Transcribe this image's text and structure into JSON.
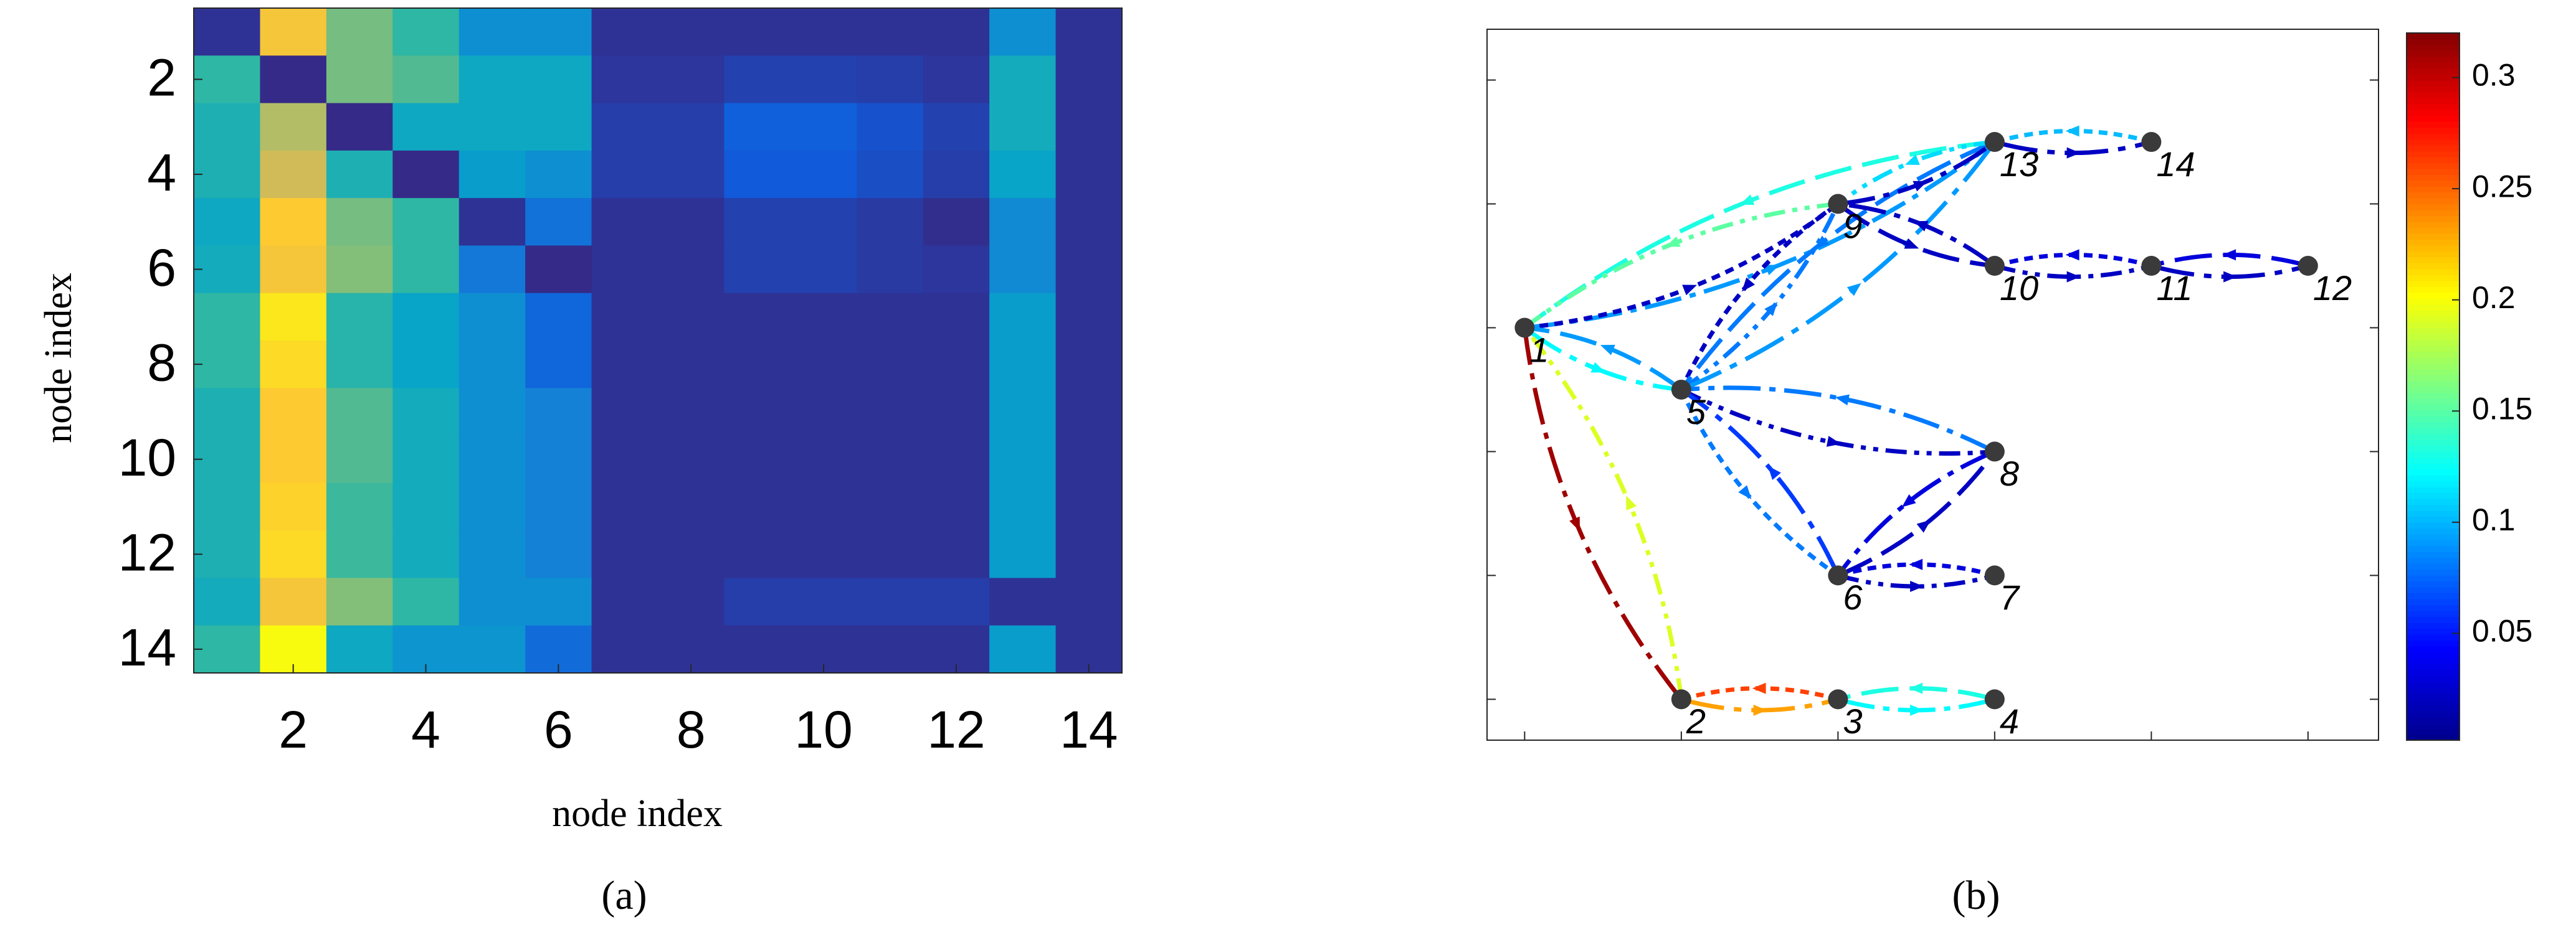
{
  "chart_data": [
    {
      "type": "heatmap",
      "caption": "(a)",
      "xlabel": "node index",
      "ylabel": "node index",
      "x": [
        1,
        2,
        3,
        4,
        5,
        6,
        7,
        8,
        9,
        10,
        11,
        12,
        13,
        14
      ],
      "y": [
        1,
        2,
        3,
        4,
        5,
        6,
        7,
        8,
        9,
        10,
        11,
        12,
        13,
        14
      ],
      "xlim": [
        0.5,
        14.5
      ],
      "ylim": [
        14.5,
        0.5
      ],
      "xticks": [
        2,
        4,
        6,
        8,
        10,
        12,
        14
      ],
      "yticks": [
        2,
        4,
        6,
        8,
        10,
        12,
        14
      ],
      "colormap": "parula",
      "clim": [
        0,
        1
      ],
      "values": [
        [
          0.02,
          0.85,
          0.6,
          0.5,
          0.3,
          0.3,
          0.02,
          0.02,
          0.02,
          0.02,
          0.02,
          0.02,
          0.3,
          0.02
        ],
        [
          0.5,
          0,
          0.6,
          0.55,
          0.4,
          0.4,
          0.03,
          0.03,
          0.06,
          0.06,
          0.05,
          0.03,
          0.42,
          0.02
        ],
        [
          0.45,
          0.7,
          0,
          0.4,
          0.4,
          0.4,
          0.05,
          0.05,
          0.14,
          0.14,
          0.1,
          0.06,
          0.42,
          0.02
        ],
        [
          0.45,
          0.75,
          0.45,
          0,
          0.35,
          0.3,
          0.05,
          0.05,
          0.12,
          0.12,
          0.09,
          0.05,
          0.38,
          0.02
        ],
        [
          0.4,
          0.88,
          0.6,
          0.5,
          0.02,
          0.2,
          0.02,
          0.02,
          0.06,
          0.06,
          0.04,
          0.01,
          0.28,
          0.02
        ],
        [
          0.42,
          0.85,
          0.62,
          0.5,
          0.22,
          0,
          0.02,
          0.02,
          0.06,
          0.06,
          0.04,
          0.03,
          0.28,
          0.02
        ],
        [
          0.5,
          0.95,
          0.48,
          0.38,
          0.3,
          0.16,
          0.02,
          0.02,
          0.02,
          0.02,
          0.02,
          0.02,
          0.35,
          0.02
        ],
        [
          0.5,
          0.92,
          0.48,
          0.38,
          0.3,
          0.16,
          0.02,
          0.02,
          0.02,
          0.02,
          0.02,
          0.02,
          0.35,
          0.02
        ],
        [
          0.45,
          0.88,
          0.55,
          0.42,
          0.3,
          0.25,
          0.02,
          0.02,
          0.02,
          0.02,
          0.02,
          0.02,
          0.35,
          0.02
        ],
        [
          0.45,
          0.88,
          0.55,
          0.42,
          0.3,
          0.25,
          0.02,
          0.02,
          0.02,
          0.02,
          0.02,
          0.02,
          0.35,
          0.02
        ],
        [
          0.45,
          0.9,
          0.52,
          0.42,
          0.3,
          0.25,
          0.02,
          0.02,
          0.02,
          0.02,
          0.02,
          0.02,
          0.35,
          0.02
        ],
        [
          0.45,
          0.92,
          0.52,
          0.42,
          0.3,
          0.25,
          0.02,
          0.02,
          0.02,
          0.02,
          0.02,
          0.02,
          0.35,
          0.02
        ],
        [
          0.42,
          0.85,
          0.62,
          0.5,
          0.3,
          0.3,
          0.02,
          0.02,
          0.05,
          0.05,
          0.05,
          0.05,
          0.02,
          0.02
        ],
        [
          0.5,
          1.0,
          0.4,
          0.32,
          0.32,
          0.18,
          0.02,
          0.02,
          0.02,
          0.02,
          0.02,
          0.02,
          0.35,
          0.02
        ]
      ]
    },
    {
      "type": "network",
      "caption": "(b)",
      "xlim": [
        -0.24,
        5.45
      ],
      "ylim": [
        -0.33,
        5.41
      ],
      "xticks": [
        0,
        1,
        2,
        3,
        4,
        5
      ],
      "yticks": [
        0,
        1,
        2,
        3,
        4,
        5
      ],
      "colormap": "jet",
      "clim": [
        0.002,
        0.32
      ],
      "colorbar_ticks": [
        0.05,
        0.1,
        0.15,
        0.2,
        0.25,
        0.3
      ],
      "nodes": [
        {
          "label": "1",
          "x": 0,
          "y": 3
        },
        {
          "label": "2",
          "x": 1,
          "y": 0
        },
        {
          "label": "3",
          "x": 2,
          "y": 0
        },
        {
          "label": "4",
          "x": 3,
          "y": 0
        },
        {
          "label": "5",
          "x": 1,
          "y": 2.5
        },
        {
          "label": "6",
          "x": 2,
          "y": 1
        },
        {
          "label": "7",
          "x": 3,
          "y": 1
        },
        {
          "label": "8",
          "x": 3,
          "y": 2
        },
        {
          "label": "9",
          "x": 2,
          "y": 4
        },
        {
          "label": "10",
          "x": 3,
          "y": 3.5
        },
        {
          "label": "11",
          "x": 4,
          "y": 3.5
        },
        {
          "label": "12",
          "x": 5,
          "y": 3.5
        },
        {
          "label": "13",
          "x": 3,
          "y": 4.5
        },
        {
          "label": "14",
          "x": 4,
          "y": 4.5
        }
      ],
      "edges": [
        {
          "from": 12,
          "to": 0,
          "value": 0.13
        },
        {
          "from": 0,
          "to": 12,
          "value": 0.09
        },
        {
          "from": 8,
          "to": 0,
          "value": 0.15
        },
        {
          "from": 0,
          "to": 8,
          "value": 0.02
        },
        {
          "from": 0,
          "to": 4,
          "value": 0.12
        },
        {
          "from": 4,
          "to": 0,
          "value": 0.09
        },
        {
          "from": 0,
          "to": 1,
          "value": 0.31
        },
        {
          "from": 1,
          "to": 0,
          "value": 0.19
        },
        {
          "from": 2,
          "to": 1,
          "value": 0.26
        },
        {
          "from": 1,
          "to": 2,
          "value": 0.23
        },
        {
          "from": 3,
          "to": 2,
          "value": 0.13
        },
        {
          "from": 2,
          "to": 3,
          "value": 0.12
        },
        {
          "from": 4,
          "to": 8,
          "value": 0.08
        },
        {
          "from": 8,
          "to": 4,
          "value": 0.02
        },
        {
          "from": 4,
          "to": 12,
          "value": 0.09
        },
        {
          "from": 12,
          "to": 4,
          "value": 0.08
        },
        {
          "from": 8,
          "to": 12,
          "value": 0.02
        },
        {
          "from": 12,
          "to": 8,
          "value": 0.11
        },
        {
          "from": 13,
          "to": 12,
          "value": 0.1
        },
        {
          "from": 12,
          "to": 13,
          "value": 0.02
        },
        {
          "from": 8,
          "to": 9,
          "value": 0.02
        },
        {
          "from": 9,
          "to": 8,
          "value": 0.02
        },
        {
          "from": 9,
          "to": 10,
          "value": 0.02
        },
        {
          "from": 10,
          "to": 9,
          "value": 0.03
        },
        {
          "from": 10,
          "to": 11,
          "value": 0.02
        },
        {
          "from": 11,
          "to": 10,
          "value": 0.03
        },
        {
          "from": 7,
          "to": 4,
          "value": 0.08
        },
        {
          "from": 4,
          "to": 7,
          "value": 0.02
        },
        {
          "from": 4,
          "to": 5,
          "value": 0.08
        },
        {
          "from": 5,
          "to": 4,
          "value": 0.06
        },
        {
          "from": 5,
          "to": 7,
          "value": 0.02
        },
        {
          "from": 7,
          "to": 5,
          "value": 0.03
        },
        {
          "from": 5,
          "to": 6,
          "value": 0.02
        },
        {
          "from": 6,
          "to": 5,
          "value": 0.03
        }
      ]
    }
  ]
}
